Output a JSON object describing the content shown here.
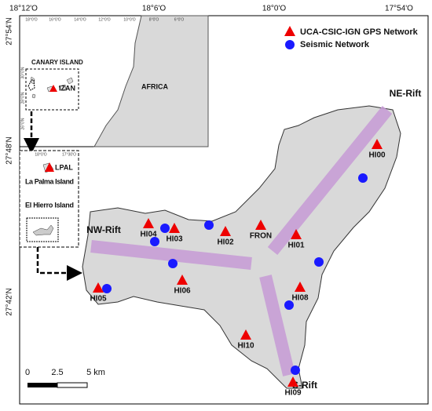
{
  "axes": {
    "top": [
      "18°12'O",
      "18°6'O",
      "18°0'O",
      "17°54'O"
    ],
    "left": [
      "27°54'N",
      "27°48'N",
      "27°42'N"
    ]
  },
  "legend": {
    "gps": "UCA-CSIC-IGN GPS Network",
    "seismic": "Seismic Network"
  },
  "rifts": [
    "NE-Rift",
    "NW-Rift",
    "S-Rift"
  ],
  "gps_stations": [
    "HI00",
    "HI01",
    "FRON",
    "HI02",
    "HI03",
    "HI04",
    "HI05",
    "HI06",
    "HI08",
    "HI10",
    "HI09"
  ],
  "inset": {
    "ticks_top": [
      "18°0'O",
      "16°0'O",
      "14°0'O",
      "12°0'O",
      "10°0'O",
      "8°0'O",
      "6°0'O"
    ],
    "ticks_left": [
      "30°0'N",
      "28°0'N",
      "26°0'N"
    ],
    "canary": "CANARY ISLAND",
    "izan": "IZAN",
    "africa": "AFRICA"
  },
  "islands": {
    "ticks_top": [
      "18°0'O",
      "17°30'O"
    ],
    "lpal": "LPAL",
    "la_palma": "La Palma Island",
    "el_hierro": "El Hierro Island"
  },
  "scale": [
    "0",
    "2.5",
    "5 km"
  ]
}
